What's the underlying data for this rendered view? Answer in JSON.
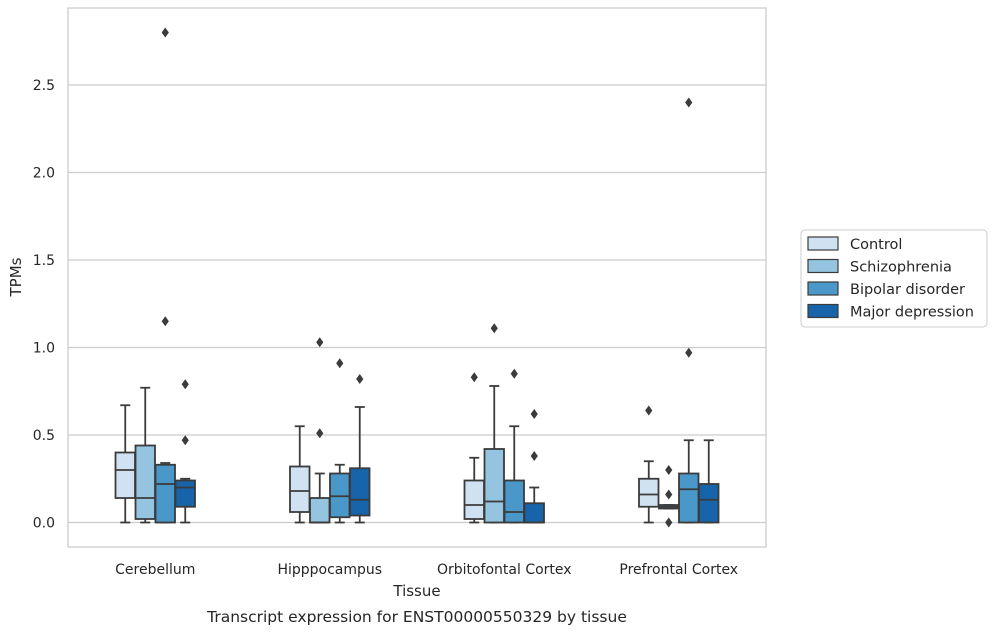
{
  "chart_data": {
    "type": "box",
    "xlabel": "Tissue",
    "ylabel": "TPMs",
    "caption": "Transcript expression for ENST00000550329 by tissue",
    "ylim": [
      -0.14,
      2.94
    ],
    "yticks": [
      "0.0",
      "0.5",
      "1.0",
      "1.5",
      "2.0",
      "2.5"
    ],
    "grid": "horizontal",
    "legend_position": "right",
    "categories": [
      "Cerebellum",
      "Hipppocampus",
      "Orbitofontal Cortex",
      "Prefrontal Cortex"
    ],
    "series": [
      {
        "name": "Control",
        "color": "#d0e1f2",
        "boxes": [
          {
            "whisker_low": 0.0,
            "q1": 0.14,
            "median": 0.3,
            "q3": 0.4,
            "whisker_high": 0.67,
            "outliers": []
          },
          {
            "whisker_low": 0.0,
            "q1": 0.06,
            "median": 0.18,
            "q3": 0.32,
            "whisker_high": 0.55,
            "outliers": []
          },
          {
            "whisker_low": 0.0,
            "q1": 0.02,
            "median": 0.1,
            "q3": 0.24,
            "whisker_high": 0.37,
            "outliers": [
              0.83
            ]
          },
          {
            "whisker_low": 0.0,
            "q1": 0.09,
            "median": 0.16,
            "q3": 0.25,
            "whisker_high": 0.35,
            "outliers": [
              0.64
            ]
          }
        ]
      },
      {
        "name": "Schizophrenia",
        "color": "#94c4df",
        "boxes": [
          {
            "whisker_low": 0.0,
            "q1": 0.02,
            "median": 0.14,
            "q3": 0.44,
            "whisker_high": 0.77,
            "outliers": []
          },
          {
            "whisker_low": 0.0,
            "q1": 0.0,
            "median": 0.0,
            "q3": 0.14,
            "whisker_high": 0.28,
            "outliers": [
              0.51,
              1.03
            ]
          },
          {
            "whisker_low": 0.0,
            "q1": 0.0,
            "median": 0.12,
            "q3": 0.42,
            "whisker_high": 0.78,
            "outliers": [
              1.11
            ]
          },
          {
            "whisker_low": 0.08,
            "q1": 0.08,
            "median": 0.09,
            "q3": 0.1,
            "whisker_high": 0.1,
            "outliers": [
              0.0,
              0.16,
              0.3
            ]
          }
        ]
      },
      {
        "name": "Bipolar disorder",
        "color": "#4a98c9",
        "boxes": [
          {
            "whisker_low": 0.0,
            "q1": 0.0,
            "median": 0.22,
            "q3": 0.33,
            "whisker_high": 0.34,
            "outliers": [
              1.15,
              2.8
            ]
          },
          {
            "whisker_low": 0.0,
            "q1": 0.03,
            "median": 0.15,
            "q3": 0.28,
            "whisker_high": 0.33,
            "outliers": [
              0.91
            ]
          },
          {
            "whisker_low": 0.0,
            "q1": 0.0,
            "median": 0.06,
            "q3": 0.24,
            "whisker_high": 0.55,
            "outliers": [
              0.85
            ]
          },
          {
            "whisker_low": 0.0,
            "q1": 0.0,
            "median": 0.19,
            "q3": 0.28,
            "whisker_high": 0.47,
            "outliers": [
              0.97,
              2.4
            ]
          }
        ]
      },
      {
        "name": "Major depression",
        "color": "#1764ab",
        "boxes": [
          {
            "whisker_low": 0.0,
            "q1": 0.09,
            "median": 0.2,
            "q3": 0.24,
            "whisker_high": 0.25,
            "outliers": [
              0.47,
              0.79
            ]
          },
          {
            "whisker_low": 0.0,
            "q1": 0.04,
            "median": 0.13,
            "q3": 0.31,
            "whisker_high": 0.66,
            "outliers": [
              0.82
            ]
          },
          {
            "whisker_low": 0.0,
            "q1": 0.0,
            "median": 0.0,
            "q3": 0.11,
            "whisker_high": 0.2,
            "outliers": [
              0.38,
              0.62
            ]
          },
          {
            "whisker_low": 0.0,
            "q1": 0.0,
            "median": 0.13,
            "q3": 0.22,
            "whisker_high": 0.47,
            "outliers": []
          }
        ]
      }
    ]
  }
}
